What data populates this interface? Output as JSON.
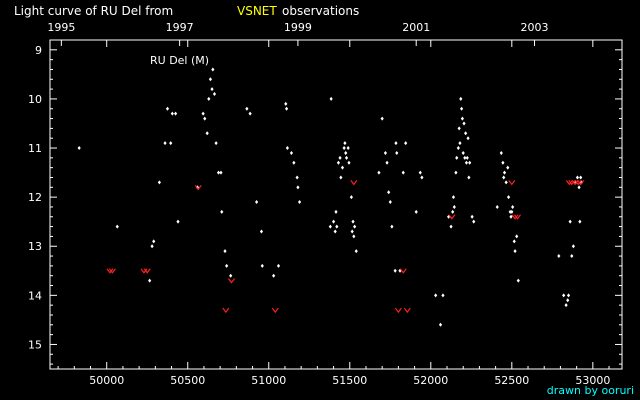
{
  "header": {
    "title_pre": "Light curve of RU Del from",
    "title_accent": "VSNET",
    "title_post": "observations",
    "accent_color": "#ffff00"
  },
  "credit": "drawn by ooruri",
  "credit_color": "#00ffff",
  "chart_data": {
    "type": "scatter",
    "title": "Light curve of RU Del from VSNET observations",
    "annotation": "RU Del (M)",
    "xlim": [
      49650,
      53180
    ],
    "ylim": [
      15.5,
      8.8
    ],
    "y_inverted": true,
    "x_ticks": [
      {
        "v": 50000,
        "label": "50000"
      },
      {
        "v": 50500,
        "label": "50500"
      },
      {
        "v": 51000,
        "label": "51000"
      },
      {
        "v": 51500,
        "label": "51500"
      },
      {
        "v": 52000,
        "label": "52000"
      },
      {
        "v": 52500,
        "label": "52500"
      },
      {
        "v": 53000,
        "label": "53000"
      }
    ],
    "x_top_ticks": [
      {
        "v": 49720,
        "label": "1995"
      },
      {
        "v": 50450,
        "label": "1997"
      },
      {
        "v": 51180,
        "label": "1999"
      },
      {
        "v": 51910,
        "label": "2001"
      },
      {
        "v": 52640,
        "label": "2003"
      }
    ],
    "y_ticks": [
      {
        "v": 9,
        "label": "9"
      },
      {
        "v": 10,
        "label": "10"
      },
      {
        "v": 11,
        "label": "11"
      },
      {
        "v": 12,
        "label": "12"
      },
      {
        "v": 13,
        "label": "13"
      },
      {
        "v": 14,
        "label": "14"
      },
      {
        "v": 15,
        "label": "15"
      }
    ],
    "series": [
      {
        "color": "#ffffff",
        "marker": "diamond",
        "points": [
          [
            49830,
            11.0
          ],
          [
            50065,
            12.6
          ],
          [
            50265,
            13.7
          ],
          [
            50280,
            13.0
          ],
          [
            50290,
            12.9
          ],
          [
            50325,
            11.7
          ],
          [
            50360,
            10.9
          ],
          [
            50375,
            10.2
          ],
          [
            50395,
            10.9
          ],
          [
            50405,
            10.3
          ],
          [
            50425,
            10.3
          ],
          [
            50440,
            12.5
          ],
          [
            50560,
            11.8
          ],
          [
            50595,
            10.3
          ],
          [
            50605,
            10.4
          ],
          [
            50620,
            10.7
          ],
          [
            50630,
            10.0
          ],
          [
            50640,
            9.6
          ],
          [
            50650,
            9.8
          ],
          [
            50655,
            9.4
          ],
          [
            50665,
            9.9
          ],
          [
            50675,
            10.9
          ],
          [
            50690,
            11.5
          ],
          [
            50705,
            11.5
          ],
          [
            50710,
            12.3
          ],
          [
            50730,
            13.1
          ],
          [
            50740,
            13.4
          ],
          [
            50765,
            13.6
          ],
          [
            50865,
            10.2
          ],
          [
            50885,
            10.3
          ],
          [
            50925,
            12.1
          ],
          [
            50955,
            12.7
          ],
          [
            50960,
            13.4
          ],
          [
            51030,
            13.6
          ],
          [
            51060,
            13.4
          ],
          [
            51105,
            10.1
          ],
          [
            51110,
            10.2
          ],
          [
            51115,
            11.0
          ],
          [
            51140,
            11.1
          ],
          [
            51155,
            11.3
          ],
          [
            51175,
            11.6
          ],
          [
            51180,
            11.8
          ],
          [
            51190,
            12.1
          ],
          [
            51380,
            12.6
          ],
          [
            51385,
            10.0
          ],
          [
            51400,
            12.5
          ],
          [
            51410,
            12.7
          ],
          [
            51415,
            12.3
          ],
          [
            51420,
            12.6
          ],
          [
            51430,
            11.3
          ],
          [
            51440,
            11.2
          ],
          [
            51445,
            11.6
          ],
          [
            51455,
            11.4
          ],
          [
            51465,
            11.0
          ],
          [
            51470,
            10.9
          ],
          [
            51475,
            11.1
          ],
          [
            51480,
            11.2
          ],
          [
            51490,
            11.0
          ],
          [
            51495,
            11.3
          ],
          [
            51510,
            12.0
          ],
          [
            51515,
            12.7
          ],
          [
            51520,
            12.5
          ],
          [
            51525,
            12.8
          ],
          [
            51530,
            12.6
          ],
          [
            51540,
            13.1
          ],
          [
            51680,
            11.5
          ],
          [
            51700,
            10.4
          ],
          [
            51720,
            11.1
          ],
          [
            51730,
            11.3
          ],
          [
            51740,
            11.9
          ],
          [
            51750,
            12.1
          ],
          [
            51760,
            12.6
          ],
          [
            51780,
            13.5
          ],
          [
            51785,
            10.9
          ],
          [
            51790,
            11.1
          ],
          [
            51810,
            13.5
          ],
          [
            51830,
            11.5
          ],
          [
            51845,
            10.9
          ],
          [
            51910,
            12.3
          ],
          [
            51935,
            11.5
          ],
          [
            51945,
            11.6
          ],
          [
            52030,
            14.0
          ],
          [
            52060,
            14.6
          ],
          [
            52075,
            14.0
          ],
          [
            52110,
            12.4
          ],
          [
            52125,
            12.6
          ],
          [
            52135,
            12.3
          ],
          [
            52140,
            12.0
          ],
          [
            52145,
            12.2
          ],
          [
            52155,
            11.5
          ],
          [
            52160,
            11.2
          ],
          [
            52170,
            11.0
          ],
          [
            52175,
            10.6
          ],
          [
            52180,
            10.9
          ],
          [
            52185,
            10.0
          ],
          [
            52190,
            10.2
          ],
          [
            52195,
            10.4
          ],
          [
            52200,
            11.1
          ],
          [
            52205,
            10.5
          ],
          [
            52210,
            11.2
          ],
          [
            52215,
            10.7
          ],
          [
            52220,
            11.3
          ],
          [
            52225,
            11.2
          ],
          [
            52230,
            10.8
          ],
          [
            52235,
            11.6
          ],
          [
            52240,
            11.3
          ],
          [
            52255,
            12.4
          ],
          [
            52265,
            12.5
          ],
          [
            52410,
            12.2
          ],
          [
            52435,
            11.1
          ],
          [
            52445,
            11.3
          ],
          [
            52450,
            11.6
          ],
          [
            52455,
            11.5
          ],
          [
            52465,
            11.7
          ],
          [
            52475,
            11.4
          ],
          [
            52480,
            12.0
          ],
          [
            52490,
            12.3
          ],
          [
            52495,
            12.4
          ],
          [
            52500,
            12.3
          ],
          [
            52505,
            12.2
          ],
          [
            52515,
            12.9
          ],
          [
            52520,
            13.1
          ],
          [
            52530,
            12.8
          ],
          [
            52540,
            13.7
          ],
          [
            52790,
            13.2
          ],
          [
            52820,
            14.0
          ],
          [
            52835,
            14.2
          ],
          [
            52845,
            14.1
          ],
          [
            52850,
            14.0
          ],
          [
            52860,
            12.5
          ],
          [
            52870,
            13.2
          ],
          [
            52880,
            13.0
          ],
          [
            52895,
            11.7
          ],
          [
            52905,
            11.6
          ],
          [
            52915,
            11.8
          ],
          [
            52920,
            12.5
          ],
          [
            52925,
            11.6
          ],
          [
            52930,
            11.7
          ]
        ]
      },
      {
        "color": "#ff2020",
        "marker": "chevron",
        "points": [
          [
            50020,
            13.5
          ],
          [
            50035,
            13.5
          ],
          [
            50230,
            13.5
          ],
          [
            50250,
            13.5
          ],
          [
            50565,
            11.8
          ],
          [
            50735,
            14.3
          ],
          [
            50770,
            13.7
          ],
          [
            51040,
            14.3
          ],
          [
            51525,
            11.7
          ],
          [
            51800,
            14.3
          ],
          [
            51830,
            13.5
          ],
          [
            51855,
            14.3
          ],
          [
            52130,
            12.4
          ],
          [
            52500,
            11.7
          ],
          [
            52520,
            12.4
          ],
          [
            52535,
            12.4
          ],
          [
            52855,
            11.7
          ],
          [
            52870,
            11.7
          ],
          [
            52890,
            11.7
          ],
          [
            52910,
            11.7
          ],
          [
            52925,
            11.7
          ]
        ]
      }
    ]
  }
}
